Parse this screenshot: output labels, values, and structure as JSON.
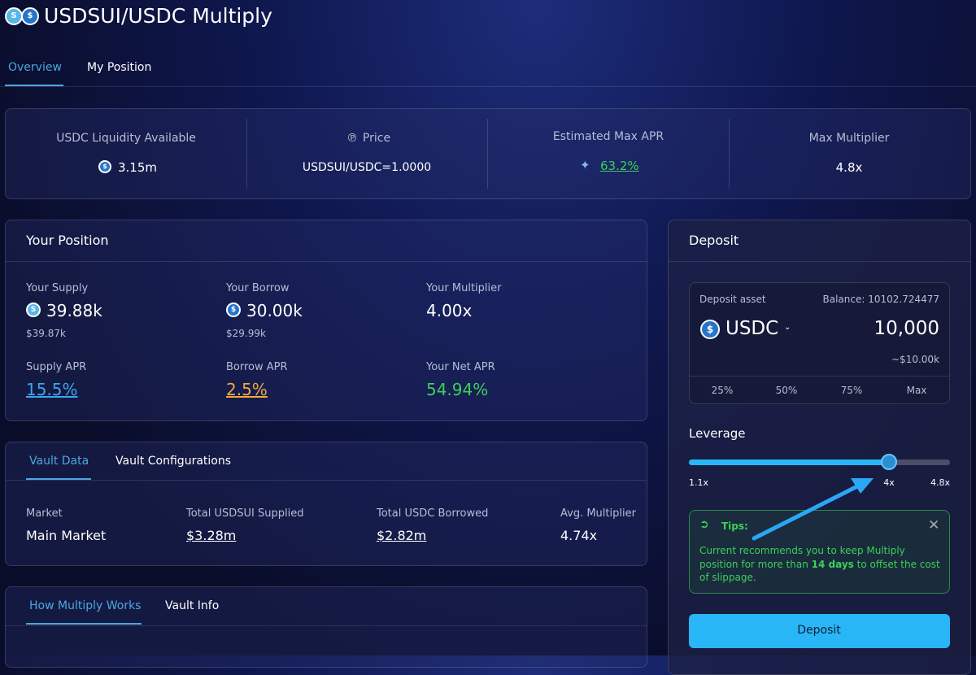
{
  "header": {
    "title": "USDSUI/USDC Multiply"
  },
  "tabs": [
    "Overview",
    "My Position"
  ],
  "stats": [
    {
      "label": "USDC Liquidity Available",
      "value": "3.15m"
    },
    {
      "label": "Price",
      "value": "USDSUI/USDC=1.0000"
    },
    {
      "label": "Estimated Max APR",
      "value": "63.2%"
    },
    {
      "label": "Max Multiplier",
      "value": "4.8x"
    }
  ],
  "position": {
    "title": "Your Position",
    "items": [
      {
        "label": "Your Supply",
        "value": "39.88k",
        "sub": "$39.87k"
      },
      {
        "label": "Your Borrow",
        "value": "30.00k",
        "sub": "$29.99k"
      },
      {
        "label": "Your Multiplier",
        "value": "4.00x"
      },
      {
        "label": "Supply APR",
        "value": "15.5%"
      },
      {
        "label": "Borrow APR",
        "value": "2.5%"
      },
      {
        "label": "Your Net APR",
        "value": "54.94%"
      }
    ]
  },
  "vault": {
    "tabs": [
      "Vault Data",
      "Vault Configurations"
    ],
    "items": [
      {
        "label": "Market",
        "value": "Main Market"
      },
      {
        "label": "Total USDSUI Supplied",
        "value": "$3.28m"
      },
      {
        "label": "Total USDC Borrowed",
        "value": "$2.82m"
      },
      {
        "label": "Avg. Multiplier",
        "value": "4.74x"
      }
    ]
  },
  "info": {
    "tabs": [
      "How Multiply Works",
      "Vault Info"
    ]
  },
  "deposit": {
    "title": "Deposit",
    "asset_label": "Deposit asset",
    "balance": "Balance: 10102.724477",
    "asset": "USDC",
    "amount": "10,000",
    "amount_usd": "~$10.00k",
    "percents": [
      "25%",
      "50%",
      "75%",
      "Max"
    ],
    "leverage_label": "Leverage",
    "leverage_ticks": [
      "1.1x",
      "4x",
      "4.8x"
    ],
    "tips_title": "Tips:",
    "tips_text": [
      "Current recommends you to keep Multiply position for more than ",
      "14 days",
      " to offset the cost of slippage."
    ],
    "button": "Deposit"
  }
}
